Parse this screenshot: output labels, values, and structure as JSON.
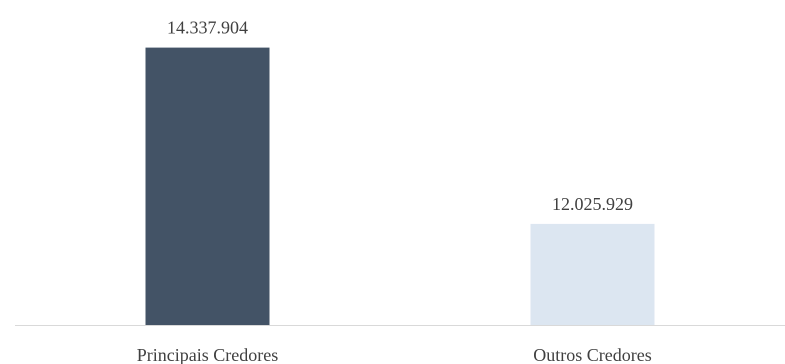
{
  "chart_data": {
    "type": "bar",
    "categories": [
      "Principais Credores",
      "Outros Credores"
    ],
    "values": [
      14337904,
      12025929
    ],
    "value_labels": [
      "14.337.904",
      "12.025.929"
    ],
    "colors": [
      "#435366",
      "#dce6f1"
    ],
    "ylim": [
      10700000,
      14700000
    ],
    "axis_color": "#d9d9d9",
    "grid": false,
    "legend": false
  }
}
